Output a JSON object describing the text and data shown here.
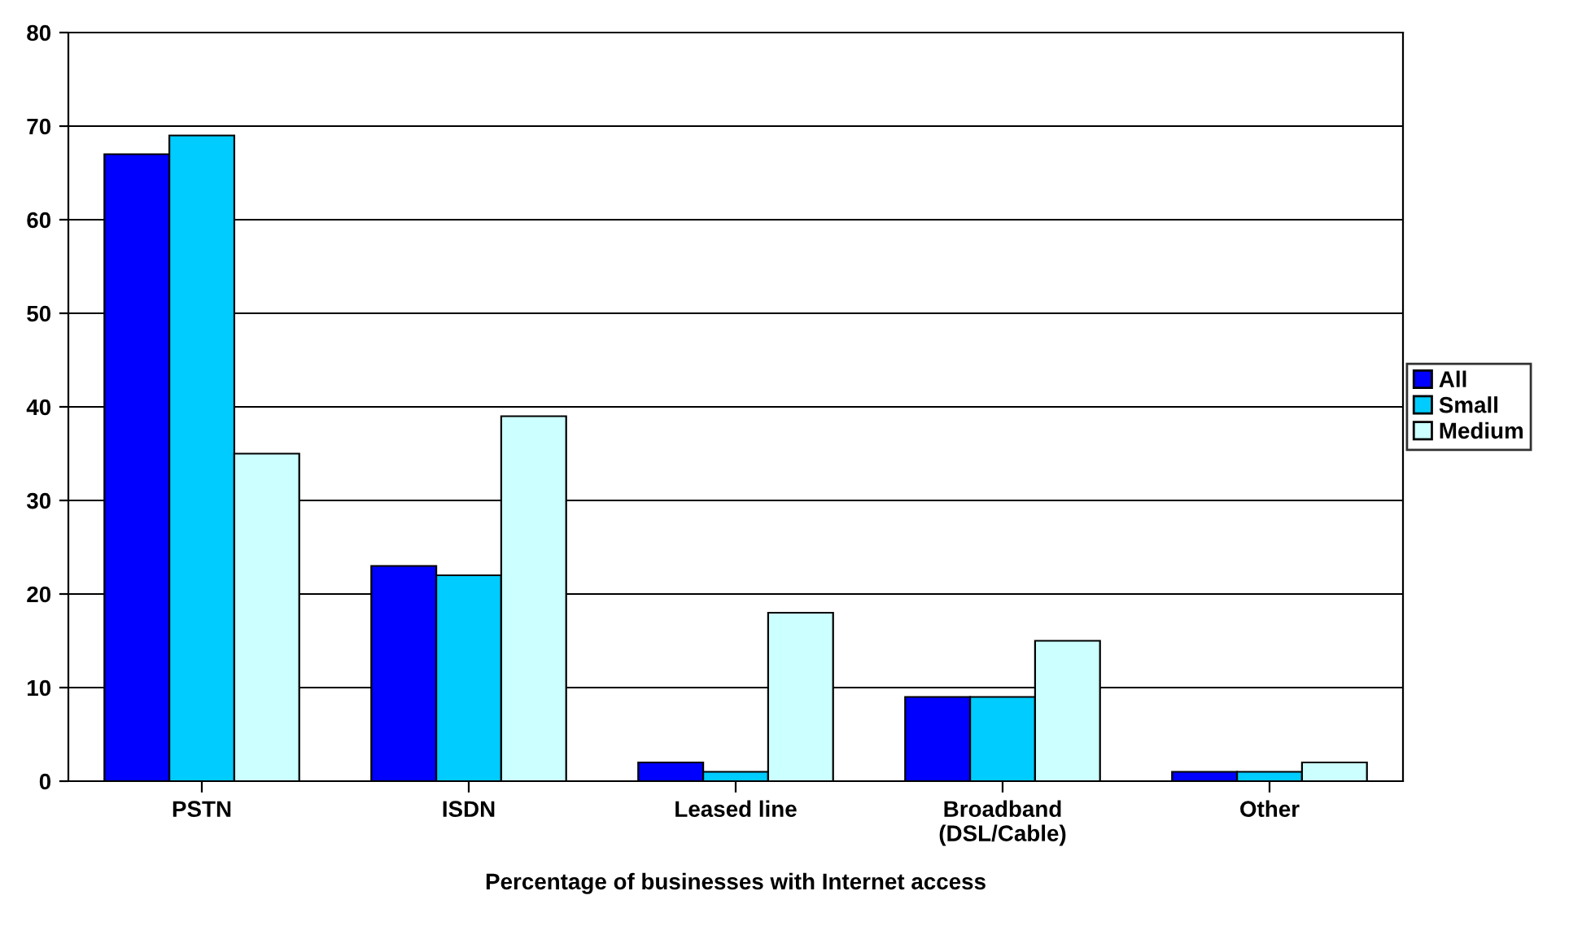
{
  "chart_data": {
    "type": "bar",
    "xlabel": "Percentage of businesses with Internet access",
    "categories": [
      "PSTN",
      "ISDN",
      "Leased line",
      "Broadband\n(DSL/Cable)",
      "Other"
    ],
    "series": [
      {
        "name": "All",
        "color": "#0000ff",
        "values": [
          67,
          23,
          2,
          9,
          1
        ]
      },
      {
        "name": "Small",
        "color": "#00ccff",
        "values": [
          69,
          22,
          1,
          9,
          1
        ]
      },
      {
        "name": "Medium",
        "color": "#ccffff",
        "values": [
          35,
          39,
          18,
          15,
          2
        ]
      }
    ],
    "ylim": [
      0,
      80
    ],
    "yticks": [
      0,
      10,
      20,
      30,
      40,
      50,
      60,
      70,
      80
    ],
    "grid": "y",
    "legend": "right"
  }
}
